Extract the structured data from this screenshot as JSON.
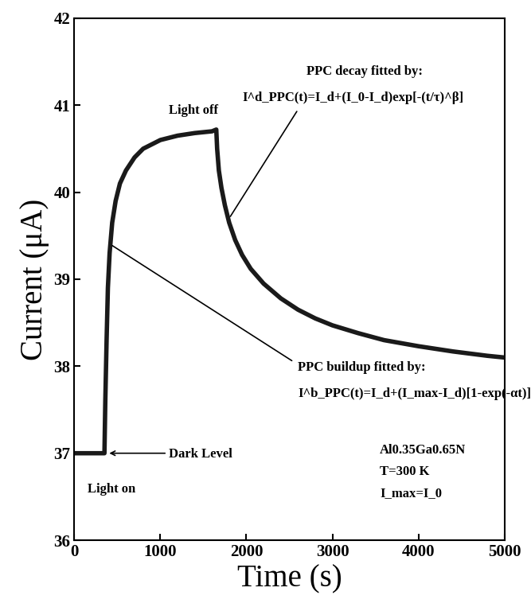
{
  "chart_data": {
    "type": "line",
    "x_label": "Time (s)",
    "y_label": "Current (μA)",
    "annotations": {
      "decay_title": "PPC decay fitted by:",
      "decay_formula": "I^d_PPC(t)=I_d+(I_0-I_d)exp[-(t/τ)^β]",
      "light_off": "Light off",
      "buildup_title": "PPC buildup fitted by:",
      "buildup_formula": "I^b_PPC(t)=I_d+(I_max-I_d)[1-exp(-αt)]",
      "dark_level": "Dark Level",
      "light_on": "Light on",
      "material": "Al0.35Ga0.65N",
      "temperature": "T=300 K",
      "condition": "I_max=I_0"
    },
    "x": [
      0,
      100,
      200,
      300,
      350,
      360,
      375,
      390,
      410,
      440,
      480,
      530,
      600,
      700,
      800,
      900,
      1000,
      1200,
      1400,
      1600,
      1650,
      1660,
      1680,
      1710,
      1750,
      1800,
      1870,
      1950,
      2050,
      2200,
      2400,
      2600,
      2800,
      3000,
      3300,
      3600,
      4000,
      4400,
      4800,
      5000
    ],
    "series": [
      {
        "name": "Al0.35Ga0.65N",
        "color": "#1a1a1a",
        "line_style": "solid",
        "values": [
          37.0,
          37.0,
          37.0,
          37.0,
          37.0,
          37.6,
          38.3,
          38.9,
          39.3,
          39.65,
          39.9,
          40.1,
          40.25,
          40.4,
          40.5,
          40.55,
          40.6,
          40.65,
          40.68,
          40.7,
          40.72,
          40.5,
          40.25,
          40.05,
          39.85,
          39.65,
          39.45,
          39.28,
          39.12,
          38.95,
          38.78,
          38.65,
          38.55,
          38.47,
          38.38,
          38.3,
          38.23,
          38.17,
          38.12,
          38.1
        ]
      }
    ],
    "xlim": [
      0,
      5000
    ],
    "ylim": [
      36,
      42
    ],
    "xticks": [
      0,
      1000,
      2000,
      3000,
      4000,
      5000
    ],
    "yticks": [
      36,
      37,
      38,
      39,
      40,
      41,
      42
    ],
    "grid": false
  }
}
